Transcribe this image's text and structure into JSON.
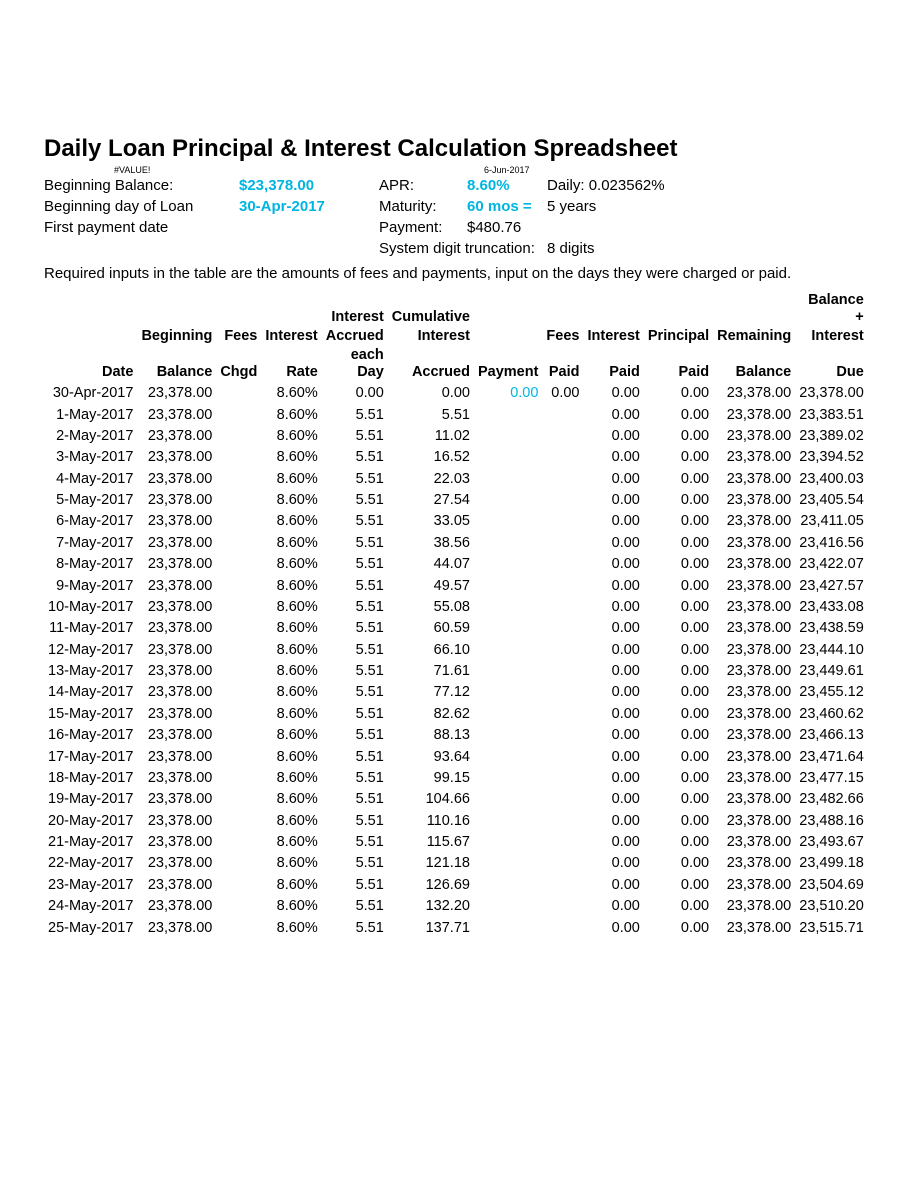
{
  "colors": {
    "accent": "#00b5e2",
    "text": "#000000",
    "background": "#ffffff"
  },
  "typography": {
    "body_font": "Arial",
    "body_size_pt": 11,
    "title_size_pt": 18,
    "tiny_size_pt": 7
  },
  "title": "Daily Loan Principal & Interest Calculation Spreadsheet",
  "tiny": {
    "left": "#VALUE!",
    "right": "6-Jun-2017"
  },
  "header": {
    "beginning_balance_label": "Beginning Balance:",
    "beginning_balance_value": "$23,378.00",
    "beginning_day_label": "Beginning day of Loan",
    "beginning_day_value": "30-Apr-2017",
    "first_payment_label": "First payment date",
    "apr_label": "APR:",
    "apr_value": "8.60%",
    "daily_label": "Daily:",
    "daily_value": "0.023562%",
    "maturity_label": "Maturity:",
    "maturity_value": "60 mos =",
    "maturity_years": "5 years",
    "payment_label": "Payment:",
    "payment_value": "$480.76",
    "truncation_label": "System digit truncation:",
    "truncation_value": "8 digits"
  },
  "note": "Required inputs in the table are the amounts of fees and payments, input on the days they were charged or paid.",
  "table": {
    "columns": [
      "Date",
      "Beginning Balance",
      "Fees Chgd",
      "Interest Rate",
      "Interest Accrued each Day",
      "Cumulative Interest Accrued",
      "Payment",
      "Fees Paid",
      "Interest Paid",
      "Principal Paid",
      "Remaining Balance",
      "Balance + Interest Due"
    ],
    "header_lines": {
      "c0": [
        "",
        "",
        "Date"
      ],
      "c1": [
        "",
        "Beginning",
        "Balance"
      ],
      "c2": [
        "",
        "Fees",
        "Chgd"
      ],
      "c3": [
        "",
        "Interest",
        "Rate"
      ],
      "c4": [
        "Interest",
        "Accrued",
        "each Day"
      ],
      "c5": [
        "Cumulative",
        "Interest",
        "Accrued"
      ],
      "c6": [
        "",
        "",
        "Payment"
      ],
      "c7": [
        "",
        "Fees",
        "Paid"
      ],
      "c8": [
        "",
        "Interest",
        "Paid"
      ],
      "c9": [
        "",
        "Principal",
        "Paid"
      ],
      "c10": [
        "",
        "Remaining",
        "Balance"
      ],
      "c11": [
        "Balance +",
        "Interest",
        "Due"
      ]
    },
    "col_classes": [
      "c-date",
      "c-begbal",
      "c-fchgd",
      "c-irate",
      "c-accday",
      "c-cumint",
      "c-pmt",
      "c-fpaid",
      "c-ipaid",
      "c-ppaid",
      "c-rembal",
      "c-baldue"
    ],
    "first_payment_accent": true,
    "rows": [
      [
        "30-Apr-2017",
        "23,378.00",
        "",
        "8.60%",
        "0.00",
        "0.00",
        "0.00",
        "0.00",
        "0.00",
        "0.00",
        "23,378.00",
        "23,378.00"
      ],
      [
        "1-May-2017",
        "23,378.00",
        "",
        "8.60%",
        "5.51",
        "5.51",
        "",
        "",
        "0.00",
        "0.00",
        "23,378.00",
        "23,383.51"
      ],
      [
        "2-May-2017",
        "23,378.00",
        "",
        "8.60%",
        "5.51",
        "11.02",
        "",
        "",
        "0.00",
        "0.00",
        "23,378.00",
        "23,389.02"
      ],
      [
        "3-May-2017",
        "23,378.00",
        "",
        "8.60%",
        "5.51",
        "16.52",
        "",
        "",
        "0.00",
        "0.00",
        "23,378.00",
        "23,394.52"
      ],
      [
        "4-May-2017",
        "23,378.00",
        "",
        "8.60%",
        "5.51",
        "22.03",
        "",
        "",
        "0.00",
        "0.00",
        "23,378.00",
        "23,400.03"
      ],
      [
        "5-May-2017",
        "23,378.00",
        "",
        "8.60%",
        "5.51",
        "27.54",
        "",
        "",
        "0.00",
        "0.00",
        "23,378.00",
        "23,405.54"
      ],
      [
        "6-May-2017",
        "23,378.00",
        "",
        "8.60%",
        "5.51",
        "33.05",
        "",
        "",
        "0.00",
        "0.00",
        "23,378.00",
        "23,411.05"
      ],
      [
        "7-May-2017",
        "23,378.00",
        "",
        "8.60%",
        "5.51",
        "38.56",
        "",
        "",
        "0.00",
        "0.00",
        "23,378.00",
        "23,416.56"
      ],
      [
        "8-May-2017",
        "23,378.00",
        "",
        "8.60%",
        "5.51",
        "44.07",
        "",
        "",
        "0.00",
        "0.00",
        "23,378.00",
        "23,422.07"
      ],
      [
        "9-May-2017",
        "23,378.00",
        "",
        "8.60%",
        "5.51",
        "49.57",
        "",
        "",
        "0.00",
        "0.00",
        "23,378.00",
        "23,427.57"
      ],
      [
        "10-May-2017",
        "23,378.00",
        "",
        "8.60%",
        "5.51",
        "55.08",
        "",
        "",
        "0.00",
        "0.00",
        "23,378.00",
        "23,433.08"
      ],
      [
        "11-May-2017",
        "23,378.00",
        "",
        "8.60%",
        "5.51",
        "60.59",
        "",
        "",
        "0.00",
        "0.00",
        "23,378.00",
        "23,438.59"
      ],
      [
        "12-May-2017",
        "23,378.00",
        "",
        "8.60%",
        "5.51",
        "66.10",
        "",
        "",
        "0.00",
        "0.00",
        "23,378.00",
        "23,444.10"
      ],
      [
        "13-May-2017",
        "23,378.00",
        "",
        "8.60%",
        "5.51",
        "71.61",
        "",
        "",
        "0.00",
        "0.00",
        "23,378.00",
        "23,449.61"
      ],
      [
        "14-May-2017",
        "23,378.00",
        "",
        "8.60%",
        "5.51",
        "77.12",
        "",
        "",
        "0.00",
        "0.00",
        "23,378.00",
        "23,455.12"
      ],
      [
        "15-May-2017",
        "23,378.00",
        "",
        "8.60%",
        "5.51",
        "82.62",
        "",
        "",
        "0.00",
        "0.00",
        "23,378.00",
        "23,460.62"
      ],
      [
        "16-May-2017",
        "23,378.00",
        "",
        "8.60%",
        "5.51",
        "88.13",
        "",
        "",
        "0.00",
        "0.00",
        "23,378.00",
        "23,466.13"
      ],
      [
        "17-May-2017",
        "23,378.00",
        "",
        "8.60%",
        "5.51",
        "93.64",
        "",
        "",
        "0.00",
        "0.00",
        "23,378.00",
        "23,471.64"
      ],
      [
        "18-May-2017",
        "23,378.00",
        "",
        "8.60%",
        "5.51",
        "99.15",
        "",
        "",
        "0.00",
        "0.00",
        "23,378.00",
        "23,477.15"
      ],
      [
        "19-May-2017",
        "23,378.00",
        "",
        "8.60%",
        "5.51",
        "104.66",
        "",
        "",
        "0.00",
        "0.00",
        "23,378.00",
        "23,482.66"
      ],
      [
        "20-May-2017",
        "23,378.00",
        "",
        "8.60%",
        "5.51",
        "110.16",
        "",
        "",
        "0.00",
        "0.00",
        "23,378.00",
        "23,488.16"
      ],
      [
        "21-May-2017",
        "23,378.00",
        "",
        "8.60%",
        "5.51",
        "115.67",
        "",
        "",
        "0.00",
        "0.00",
        "23,378.00",
        "23,493.67"
      ],
      [
        "22-May-2017",
        "23,378.00",
        "",
        "8.60%",
        "5.51",
        "121.18",
        "",
        "",
        "0.00",
        "0.00",
        "23,378.00",
        "23,499.18"
      ],
      [
        "23-May-2017",
        "23,378.00",
        "",
        "8.60%",
        "5.51",
        "126.69",
        "",
        "",
        "0.00",
        "0.00",
        "23,378.00",
        "23,504.69"
      ],
      [
        "24-May-2017",
        "23,378.00",
        "",
        "8.60%",
        "5.51",
        "132.20",
        "",
        "",
        "0.00",
        "0.00",
        "23,378.00",
        "23,510.20"
      ],
      [
        "25-May-2017",
        "23,378.00",
        "",
        "8.60%",
        "5.51",
        "137.71",
        "",
        "",
        "0.00",
        "0.00",
        "23,378.00",
        "23,515.71"
      ]
    ]
  }
}
